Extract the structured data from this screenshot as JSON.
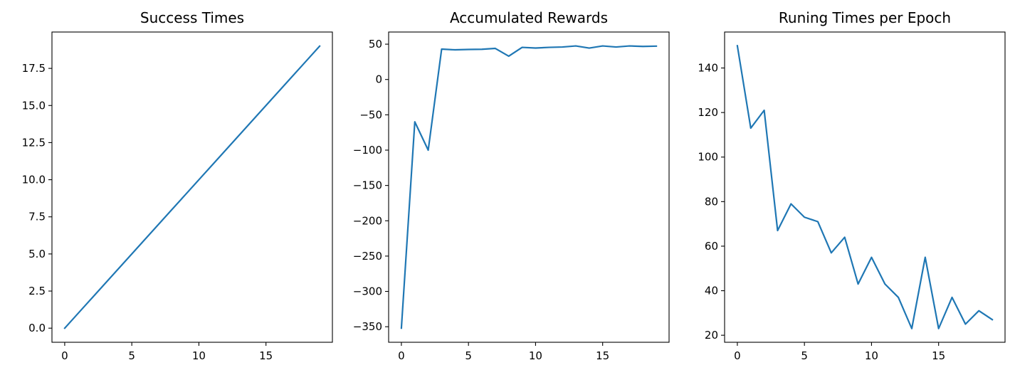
{
  "chart_data": [
    {
      "type": "line",
      "title": "Success Times",
      "xlabel": "",
      "ylabel": "",
      "x": [
        0,
        1,
        2,
        3,
        4,
        5,
        6,
        7,
        8,
        9,
        10,
        11,
        12,
        13,
        14,
        15,
        16,
        17,
        18,
        19
      ],
      "series": [
        {
          "name": "success_times",
          "values": [
            0,
            1,
            2,
            3,
            4,
            5,
            6,
            7,
            8,
            9,
            10,
            11,
            12,
            13,
            14,
            15,
            16,
            17,
            18,
            19
          ]
        }
      ],
      "xlim": [
        -0.95,
        19.95
      ],
      "ylim": [
        -0.95,
        19.95
      ],
      "xticks": [
        0,
        5,
        10,
        15
      ],
      "xtick_labels": [
        "0",
        "5",
        "10",
        "15"
      ],
      "yticks": [
        0,
        2.5,
        5,
        7.5,
        10,
        12.5,
        15,
        17.5
      ],
      "ytick_labels": [
        "0.0",
        "2.5",
        "5.0",
        "7.5",
        "10.0",
        "12.5",
        "15.0",
        "17.5"
      ],
      "color": "#1f77b4"
    },
    {
      "type": "line",
      "title": "Accumulated Rewards",
      "xlabel": "",
      "ylabel": "",
      "x": [
        0,
        1,
        2,
        3,
        4,
        5,
        6,
        7,
        8,
        9,
        10,
        11,
        12,
        13,
        14,
        15,
        16,
        17,
        18,
        19
      ],
      "series": [
        {
          "name": "accumulated_rewards",
          "values": [
            -352,
            -60,
            -100,
            43,
            42,
            42.5,
            42.8,
            44,
            33,
            45.5,
            44.5,
            45.5,
            46,
            47.5,
            44.5,
            47.5,
            46,
            47.5,
            46.8,
            47.2
          ]
        }
      ],
      "xlim": [
        -0.95,
        19.95
      ],
      "ylim": [
        -372,
        67.2
      ],
      "xticks": [
        0,
        5,
        10,
        15
      ],
      "xtick_labels": [
        "0",
        "5",
        "10",
        "15"
      ],
      "yticks": [
        -350,
        -300,
        -250,
        -200,
        -150,
        -100,
        -50,
        0,
        50
      ],
      "ytick_labels": [
        "−350",
        "−300",
        "−250",
        "−200",
        "−150",
        "−100",
        "−50",
        "0",
        "50"
      ],
      "color": "#1f77b4"
    },
    {
      "type": "line",
      "title": "Runing Times per Epoch",
      "xlabel": "",
      "ylabel": "",
      "x": [
        0,
        1,
        2,
        3,
        4,
        5,
        6,
        7,
        8,
        9,
        10,
        11,
        12,
        13,
        14,
        15,
        16,
        17,
        18,
        19
      ],
      "series": [
        {
          "name": "running_times",
          "values": [
            150,
            113,
            121,
            67,
            79,
            73,
            71,
            57,
            64,
            43,
            55,
            43,
            37,
            23,
            55,
            23,
            37,
            25,
            31,
            27
          ]
        }
      ],
      "xlim": [
        -0.95,
        19.95
      ],
      "ylim": [
        16.85,
        156.15
      ],
      "xticks": [
        0,
        5,
        10,
        15
      ],
      "xtick_labels": [
        "0",
        "5",
        "10",
        "15"
      ],
      "yticks": [
        20,
        40,
        60,
        80,
        100,
        120,
        140
      ],
      "ytick_labels": [
        "20",
        "40",
        "60",
        "80",
        "100",
        "120",
        "140"
      ],
      "color": "#1f77b4"
    }
  ]
}
